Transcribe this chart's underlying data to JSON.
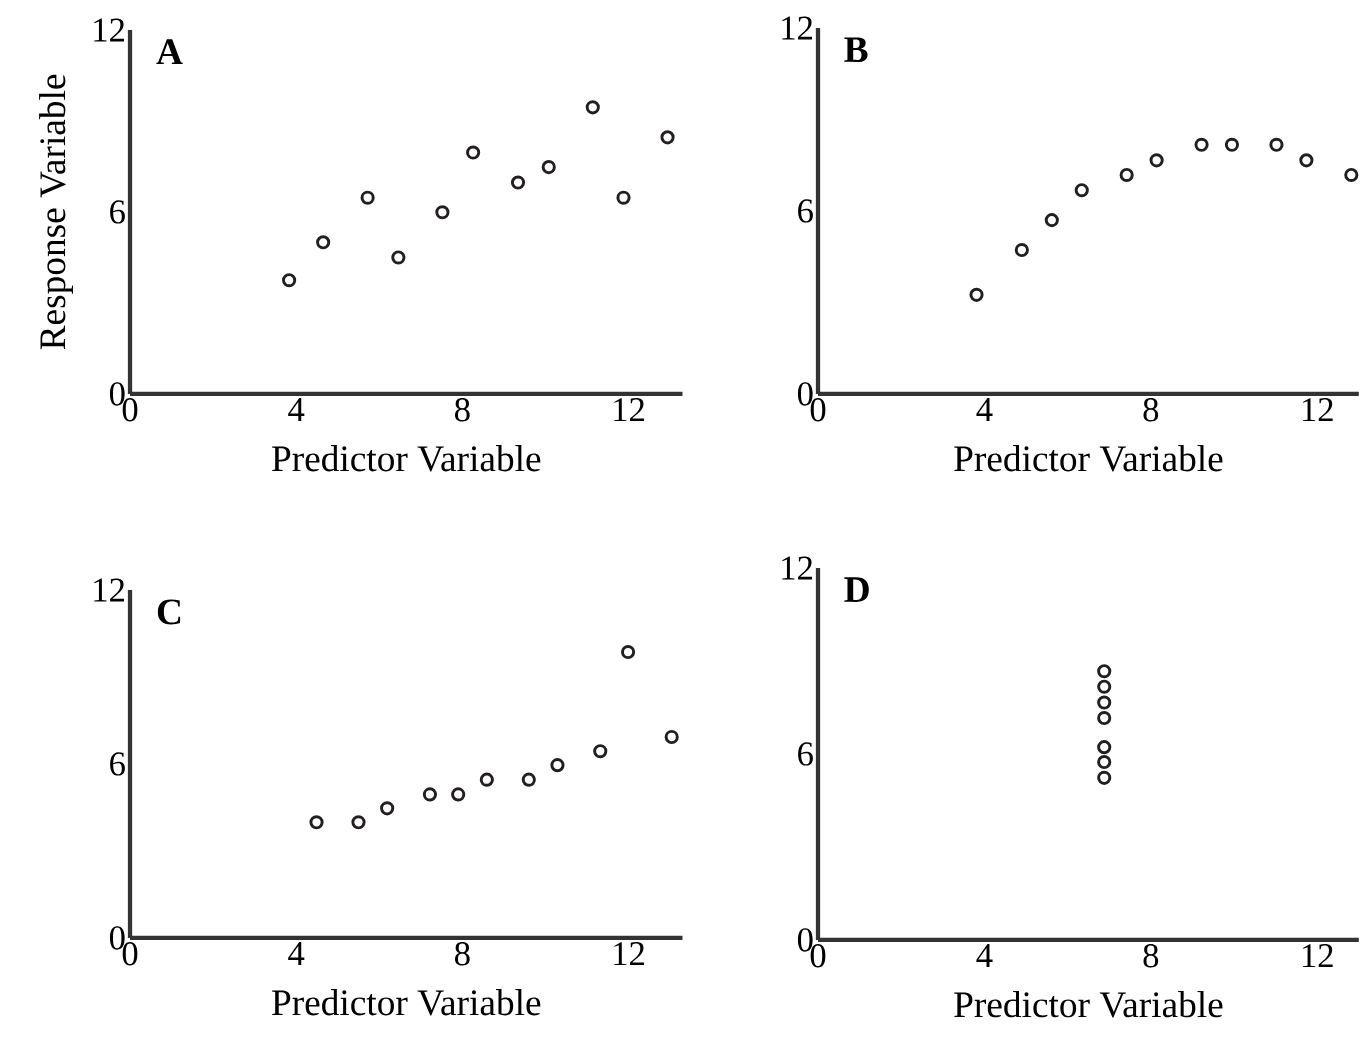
{
  "chart_data": [
    {
      "type": "scatter",
      "title": "A",
      "xlabel": "Predictor Variable",
      "ylabel": "Response Variable",
      "color": "#231f20",
      "marker": "circle",
      "xlim": [
        0,
        13.3
      ],
      "ylim": [
        0,
        12
      ],
      "xticks": [
        0,
        4,
        8,
        12
      ],
      "yticks": [
        0,
        6,
        12
      ],
      "x": [
        3.83,
        4.65,
        5.72,
        6.46,
        7.52,
        8.26,
        9.34,
        10.08,
        11.14,
        11.88,
        12.94
      ],
      "values": [
        3.75,
        5.0,
        6.47,
        4.5,
        5.99,
        7.96,
        6.97,
        7.48,
        9.45,
        6.47,
        8.46
      ]
    },
    {
      "type": "scatter",
      "title": "B",
      "xlabel": "Predictor Variable",
      "color": "#231f20",
      "marker": "circle",
      "xlim": [
        0,
        13.0
      ],
      "ylim": [
        0,
        12
      ],
      "xticks": [
        0,
        4,
        8,
        12
      ],
      "yticks": [
        0,
        6,
        12
      ],
      "x": [
        3.81,
        4.9,
        5.62,
        6.34,
        7.42,
        8.14,
        9.22,
        9.95,
        11.02,
        11.74,
        12.82
      ],
      "values": [
        3.25,
        4.72,
        5.7,
        6.68,
        7.18,
        7.66,
        8.17,
        8.17,
        8.17,
        7.66,
        7.18
      ]
    },
    {
      "type": "scatter",
      "title": "C",
      "xlabel": "Predictor Variable",
      "color": "#231f20",
      "marker": "circle",
      "xlim": [
        0,
        13.3
      ],
      "ylim": [
        0,
        12
      ],
      "xticks": [
        0,
        4,
        8,
        12
      ],
      "yticks": [
        0,
        6,
        12
      ],
      "x": [
        4.49,
        5.5,
        6.19,
        7.22,
        7.9,
        8.59,
        9.6,
        10.29,
        11.32,
        11.99,
        13.04
      ],
      "values": [
        3.99,
        3.99,
        4.47,
        4.95,
        4.95,
        5.46,
        5.46,
        5.96,
        6.44,
        9.86,
        6.93
      ]
    },
    {
      "type": "scatter",
      "title": "D",
      "xlabel": "Predictor Variable",
      "color": "#231f20",
      "marker": "circle",
      "xlim": [
        0,
        13.0
      ],
      "ylim": [
        0,
        12
      ],
      "xticks": [
        0,
        4,
        8,
        12
      ],
      "yticks": [
        0,
        6,
        12
      ],
      "x": [
        6.88,
        6.88,
        6.88,
        6.88,
        6.88,
        6.88,
        6.88
      ],
      "values": [
        8.67,
        8.17,
        7.66,
        7.16,
        6.22,
        5.74,
        5.23
      ]
    }
  ]
}
